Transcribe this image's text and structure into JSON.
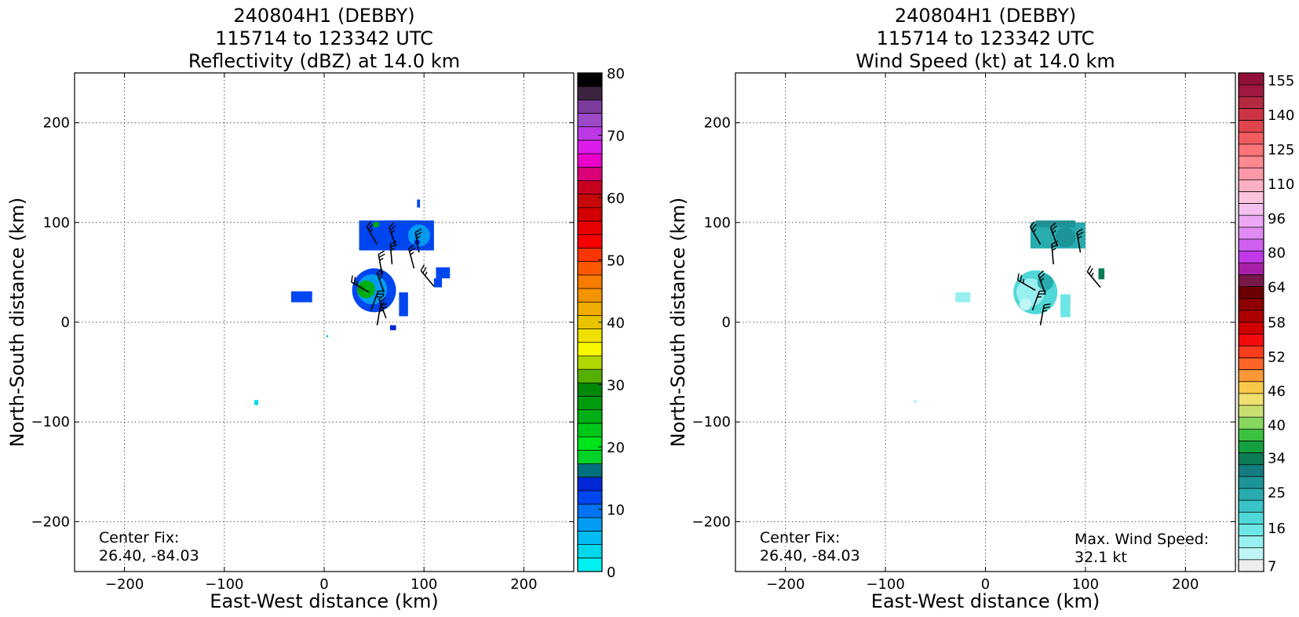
{
  "chart_data": [
    {
      "type": "heatmap",
      "title_lines": [
        "240804H1 (DEBBY)",
        "115714 to 123342 UTC",
        "Reflectivity (dBZ) at 14.0 km"
      ],
      "xlabel": "East-West distance (km)",
      "ylabel": "North-South distance (km)",
      "xlim": [
        -250,
        250
      ],
      "ylim": [
        -250,
        250
      ],
      "xticks": [
        -200,
        -100,
        0,
        100,
        200
      ],
      "yticks": [
        -200,
        -100,
        0,
        100,
        200
      ],
      "xtick_labels": [
        "−200",
        "−100",
        "0",
        "100",
        "200"
      ],
      "ytick_labels": [
        "−200",
        "−100",
        "0",
        "100",
        "200"
      ],
      "grid": true,
      "annotations": [
        {
          "id": "center_fix",
          "lines": [
            "Center Fix:",
            "26.40, -84.03"
          ],
          "position": "bottom-left"
        }
      ],
      "colorbar": {
        "min": 0,
        "max": 80,
        "colors": [
          "#00f0f0",
          "#00d8ec",
          "#00bcf0",
          "#009cf4",
          "#0072f4",
          "#0046f0",
          "#0028d8",
          "#00707e",
          "#00d428",
          "#00e41c",
          "#00c818",
          "#00b014",
          "#009c0c",
          "#008808",
          "#56b000",
          "#b0d800",
          "#f8f800",
          "#f0e000",
          "#e8c400",
          "#f0ac00",
          "#f49400",
          "#f87c00",
          "#fc5800",
          "#fc3400",
          "#f80000",
          "#e80000",
          "#d40000",
          "#c80808",
          "#c80020",
          "#dc0078",
          "#ec00cc",
          "#dc1cec",
          "#bc38e4",
          "#9c48c8",
          "#7c3c9c",
          "#3c2440",
          "#000000"
        ],
        "tick_values": [
          0,
          10,
          20,
          30,
          40,
          50,
          60,
          70,
          80
        ],
        "tick_labels": [
          "0",
          "10",
          "20",
          "30",
          "40",
          "50",
          "60",
          "70",
          "80"
        ]
      },
      "echo_regions": [
        {
          "shape": "rect",
          "x0": 35,
          "x1": 110,
          "y0": 72,
          "y1": 102,
          "color": "#0046f0"
        },
        {
          "shape": "rect",
          "x0": 60,
          "x1": 98,
          "y0": 95,
          "y1": 102,
          "color": "#0046f0"
        },
        {
          "shape": "circle",
          "cx": 95,
          "cy": 87,
          "r": 11,
          "color": "#009cf4"
        },
        {
          "shape": "circle",
          "cx": 93,
          "cy": 80,
          "r": 3,
          "color": "#0028d8"
        },
        {
          "shape": "circle",
          "cx": 52,
          "cy": 98,
          "r": 3,
          "color": "#00b014"
        },
        {
          "shape": "rect",
          "x0": 93,
          "x1": 96,
          "y0": 115,
          "y1": 123,
          "color": "#0046f0"
        },
        {
          "shape": "circle",
          "cx": 50,
          "cy": 32,
          "r": 22,
          "color": "#0046f0"
        },
        {
          "shape": "circle",
          "cx": 48,
          "cy": 33,
          "r": 15,
          "color": "#009cf4"
        },
        {
          "shape": "circle",
          "cx": 42,
          "cy": 33,
          "r": 9,
          "color": "#00b014"
        },
        {
          "shape": "circle",
          "cx": 37,
          "cy": 34,
          "r": 4,
          "color": "#009c0c"
        },
        {
          "shape": "rect",
          "x0": 112,
          "x1": 126,
          "y0": 44,
          "y1": 55,
          "color": "#0046f0"
        },
        {
          "shape": "rect",
          "x0": 110,
          "x1": 118,
          "y0": 35,
          "y1": 44,
          "color": "#0046f0"
        },
        {
          "shape": "rect",
          "x0": 75,
          "x1": 84,
          "y0": 6,
          "y1": 30,
          "color": "#0046f0"
        },
        {
          "shape": "rect",
          "x0": -33,
          "x1": -12,
          "y0": 20,
          "y1": 31,
          "color": "#0046f0"
        },
        {
          "shape": "rect",
          "x0": 66,
          "x1": 72,
          "y0": -8,
          "y1": -3,
          "color": "#0028d8"
        },
        {
          "shape": "rect",
          "x0": -70,
          "x1": -66,
          "y0": -83,
          "y1": -78,
          "color": "#00d8ec"
        },
        {
          "shape": "rect",
          "x0": 2,
          "x1": 4,
          "y0": -15,
          "y1": -13,
          "color": "#00bcf0"
        }
      ],
      "wind_barbs": [
        {
          "x": 53,
          "y": 78,
          "dir": 330
        },
        {
          "x": 72,
          "y": 76,
          "dir": 340
        },
        {
          "x": 95,
          "y": 70,
          "dir": 350
        },
        {
          "x": 68,
          "y": 58,
          "dir": 355
        },
        {
          "x": 90,
          "y": 54,
          "dir": 345
        },
        {
          "x": 110,
          "y": 36,
          "dir": 320
        },
        {
          "x": 58,
          "y": 48,
          "dir": 350
        },
        {
          "x": 45,
          "y": 30,
          "dir": 300
        },
        {
          "x": 60,
          "y": 30,
          "dir": 340
        },
        {
          "x": 47,
          "y": 12,
          "dir": 20
        },
        {
          "x": 62,
          "y": 4,
          "dir": 340
        },
        {
          "x": 53,
          "y": -3,
          "dir": 10
        }
      ]
    },
    {
      "type": "heatmap",
      "title_lines": [
        "240804H1 (DEBBY)",
        "115714 to 123342 UTC",
        "Wind Speed (kt) at 14.0 km"
      ],
      "xlabel": "East-West distance (km)",
      "ylabel": "North-South distance (km)",
      "xlim": [
        -250,
        250
      ],
      "ylim": [
        -250,
        250
      ],
      "xticks": [
        -200,
        -100,
        0,
        100,
        200
      ],
      "yticks": [
        -200,
        -100,
        0,
        100,
        200
      ],
      "xtick_labels": [
        "−200",
        "−100",
        "0",
        "100",
        "200"
      ],
      "ytick_labels": [
        "−200",
        "−100",
        "0",
        "100",
        "200"
      ],
      "grid": true,
      "annotations": [
        {
          "id": "center_fix",
          "lines": [
            "Center Fix:",
            "26.40, -84.03"
          ],
          "position": "bottom-left"
        },
        {
          "id": "max_wind",
          "lines": [
            "Max. Wind Speed:",
            "32.1 kt"
          ],
          "position": "bottom-right"
        }
      ],
      "colorbar": {
        "colors": [
          "#eeeeee",
          "#bff5f5",
          "#98f0f0",
          "#6ee6e6",
          "#50d8d8",
          "#38c4c8",
          "#28acb0",
          "#1c9498",
          "#147c80",
          "#0c7c54",
          "#14a040",
          "#3cc040",
          "#88d860",
          "#c8e070",
          "#f0e070",
          "#f8c848",
          "#fc9838",
          "#fc6428",
          "#fc3c1c",
          "#f40c0c",
          "#d00000",
          "#ac0000",
          "#8c0000",
          "#6c0000",
          "#781848",
          "#a820a8",
          "#c038e8",
          "#d060f0",
          "#e08cf4",
          "#eca8f4",
          "#f4c0f0",
          "#fcc4dc",
          "#fcb0c4",
          "#fc98a8",
          "#fc8890",
          "#fc7478",
          "#f05c60",
          "#e0444c",
          "#cc3444",
          "#b42840",
          "#a01840",
          "#901038"
        ],
        "tick_labels": [
          "7",
          "16",
          "25",
          "34",
          "40",
          "46",
          "52",
          "58",
          "64",
          "80",
          "96",
          "110",
          "125",
          "140",
          "155"
        ],
        "tick_index_fractions": [
          0.0119,
          0.0881,
          0.1595,
          0.229,
          0.2952,
          0.3629,
          0.4319,
          0.501,
          0.5714,
          0.6405,
          0.7095,
          0.7786,
          0.8476,
          0.9167,
          0.9857
        ]
      },
      "echo_regions": [
        {
          "shape": "rect",
          "x0": 45,
          "x1": 100,
          "y0": 74,
          "y1": 100,
          "color": "#28acb0"
        },
        {
          "shape": "rect",
          "x0": 50,
          "x1": 90,
          "y0": 95,
          "y1": 102,
          "color": "#1c9498"
        },
        {
          "shape": "circle",
          "cx": 80,
          "cy": 85,
          "r": 10,
          "color": "#1c9498"
        },
        {
          "shape": "circle",
          "cx": 50,
          "cy": 30,
          "r": 22,
          "color": "#50d8d8"
        },
        {
          "shape": "circle",
          "cx": 45,
          "cy": 30,
          "r": 14,
          "color": "#98f0f0"
        },
        {
          "shape": "circle",
          "cx": 60,
          "cy": 40,
          "r": 8,
          "color": "#28acb0"
        },
        {
          "shape": "circle",
          "cx": 40,
          "cy": 18,
          "r": 6,
          "color": "#bff5f5"
        },
        {
          "shape": "rect",
          "x0": 113,
          "x1": 119,
          "y0": 43,
          "y1": 54,
          "color": "#0c7c54"
        },
        {
          "shape": "rect",
          "x0": 75,
          "x1": 85,
          "y0": 5,
          "y1": 28,
          "color": "#6ee6e6"
        },
        {
          "shape": "rect",
          "x0": -30,
          "x1": -15,
          "y0": 20,
          "y1": 30,
          "color": "#98f0f0"
        },
        {
          "shape": "rect",
          "x0": -72,
          "x1": -68,
          "y0": -81,
          "y1": -78,
          "color": "#bff5f5"
        }
      ],
      "wind_barbs": [
        {
          "x": 55,
          "y": 78,
          "dir": 330
        },
        {
          "x": 72,
          "y": 76,
          "dir": 340
        },
        {
          "x": 95,
          "y": 70,
          "dir": 350
        },
        {
          "x": 68,
          "y": 58,
          "dir": 355
        },
        {
          "x": 115,
          "y": 35,
          "dir": 320
        },
        {
          "x": 50,
          "y": 32,
          "dir": 300
        },
        {
          "x": 60,
          "y": 28,
          "dir": 340
        },
        {
          "x": 47,
          "y": 12,
          "dir": 20
        },
        {
          "x": 55,
          "y": -3,
          "dir": 10
        }
      ]
    }
  ]
}
